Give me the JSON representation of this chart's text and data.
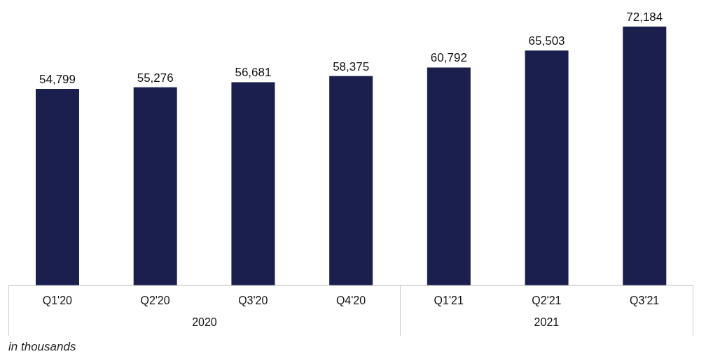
{
  "chart_data": {
    "type": "bar",
    "categories": [
      "Q1'20",
      "Q2'20",
      "Q3'20",
      "Q4'20",
      "Q1'21",
      "Q2'21",
      "Q3'21"
    ],
    "values": [
      54799,
      55276,
      56681,
      58375,
      60792,
      65503,
      72184
    ],
    "color": "#1a1f4e",
    "value_labels": [
      "54,799",
      "55,276",
      "56,681",
      "58,375",
      "60,792",
      "65,503",
      "72,184"
    ],
    "annotations": [
      "2020",
      "2021",
      "in thousands"
    ]
  }
}
